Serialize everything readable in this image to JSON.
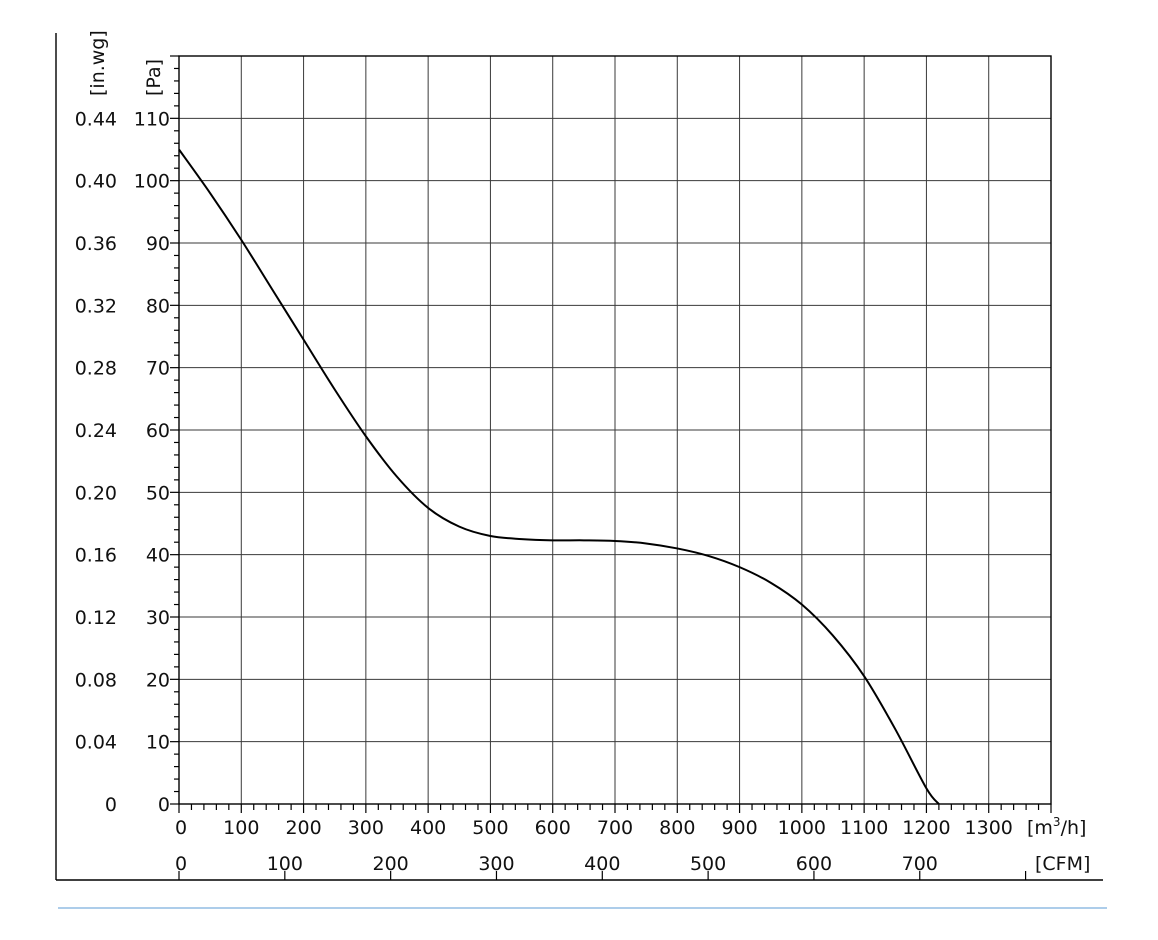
{
  "chart_data": {
    "type": "line",
    "title": "",
    "x_primary": {
      "unit_prefix": "[m",
      "unit_sup": "3",
      "unit_suffix": "/h]",
      "min": 0,
      "max": 1400,
      "ticks": [
        0,
        100,
        200,
        300,
        400,
        500,
        600,
        700,
        800,
        900,
        1000,
        1100,
        1200,
        1300
      ],
      "tick_labels": [
        "0",
        "100",
        "200",
        "300",
        "400",
        "500",
        "600",
        "700",
        "800",
        "900",
        "1000",
        "1100",
        "1200",
        "1300"
      ]
    },
    "x_secondary": {
      "unit": "[CFM]",
      "ticks": [
        0,
        100,
        200,
        300,
        400,
        500,
        600,
        700
      ],
      "tick_labels": [
        "0",
        "100",
        "200",
        "300",
        "400",
        "500",
        "600",
        "700"
      ]
    },
    "y_primary": {
      "unit": "[Pa]",
      "min": 0,
      "max": 120,
      "ticks": [
        0,
        10,
        20,
        30,
        40,
        50,
        60,
        70,
        80,
        90,
        100,
        110
      ],
      "tick_labels": [
        "0",
        "10",
        "20",
        "30",
        "40",
        "50",
        "60",
        "70",
        "80",
        "90",
        "100",
        "110"
      ]
    },
    "y_secondary": {
      "unit": "[in.wg]",
      "tick_labels": [
        "0",
        "0.04",
        "0.08",
        "0.12",
        "0.16",
        "0.20",
        "0.24",
        "0.28",
        "0.32",
        "0.36",
        "0.40",
        "0.44"
      ]
    },
    "grid": true,
    "series": [
      {
        "x": [
          0,
          50,
          100,
          150,
          200,
          250,
          300,
          350,
          400,
          450,
          500,
          550,
          600,
          650,
          700,
          750,
          800,
          850,
          900,
          950,
          1000,
          1050,
          1100,
          1150,
          1200,
          1220
        ],
        "y": [
          105,
          98,
          90.5,
          82.5,
          74.5,
          66.5,
          59,
          52.5,
          47.5,
          44.5,
          43,
          42.5,
          42.3,
          42.3,
          42.2,
          41.8,
          41,
          39.8,
          38,
          35.5,
          32,
          27,
          20.5,
          12,
          2.5,
          0
        ]
      }
    ]
  }
}
